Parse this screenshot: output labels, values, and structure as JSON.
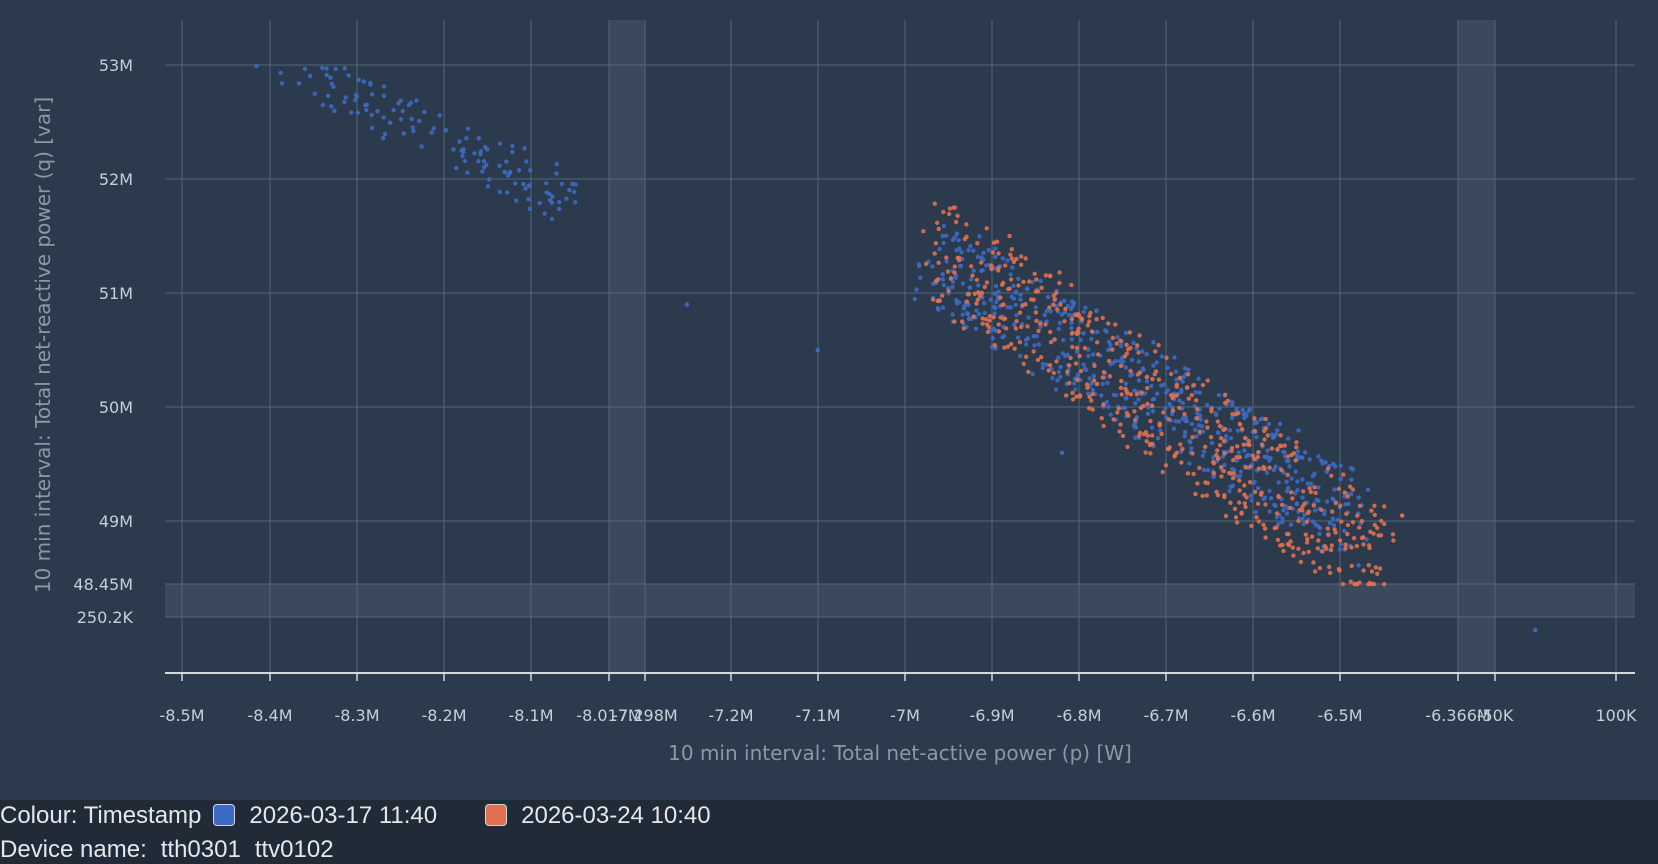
{
  "chart_data": {
    "type": "scatter",
    "xlabel": "10 min interval: Total net-active power (p) [W]",
    "ylabel": "10 min interval: Total net-reactive power (q) [var]",
    "grid": true,
    "x_ticks": [
      "-8.5M",
      "-8.4M",
      "-8.3M",
      "-8.2M",
      "-8.1M",
      "-8.017M",
      "-7.298M",
      "-7.2M",
      "-7.1M",
      "-7M",
      "-6.9M",
      "-6.8M",
      "-6.7M",
      "-6.6M",
      "-6.5M",
      "-6.366M",
      "-50K",
      "100K"
    ],
    "y_ticks": [
      "53M",
      "52M",
      "51M",
      "50M",
      "49M",
      "48.45M",
      "250.2K"
    ],
    "axis_breaks": {
      "x": [
        [
          "-8.017M",
          "-7.298M"
        ],
        [
          "-6.366M",
          "-50K"
        ]
      ],
      "y": [
        [
          "48.45M",
          "250.2K"
        ]
      ]
    },
    "series": [
      {
        "name": "2026-03-17 11:40",
        "color": "#3d6ac2",
        "clusters": [
          {
            "x_range": [
              -8410000.0,
              -8060000.0
            ],
            "y_range": [
              51800000.0,
              53150000.0
            ],
            "count": 150
          },
          {
            "x_range": [
              -6970000.0,
              -6480000.0
            ],
            "y_range": [
              49000000.0,
              51300000.0
            ],
            "count": 620
          }
        ],
        "outliers": [
          [
            -7250000.0,
            50900000.0
          ],
          [
            -7100000.0,
            50500000.0
          ],
          [
            -6820000.0,
            49600000.0
          ],
          [
            0,
            150000
          ]
        ]
      },
      {
        "name": "2026-03-24 10:40",
        "color": "#e0704f",
        "clusters": [
          {
            "x_range": [
              -6970000.0,
              -6450000.0
            ],
            "y_range": [
              48600000.0,
              51400000.0
            ],
            "count": 560
          }
        ],
        "outliers": [
          [
            -6430000.0,
            49050000.0
          ]
        ]
      }
    ]
  },
  "legend": {
    "colour_label": "Colour: Timestamp",
    "items": [
      {
        "label": "2026-03-17 11:40",
        "color": "#3d6ac2"
      },
      {
        "label": "2026-03-24 10:40",
        "color": "#e0704f"
      }
    ],
    "device_label": "Device name:",
    "devices": [
      "tth0301",
      "ttv0102"
    ]
  }
}
